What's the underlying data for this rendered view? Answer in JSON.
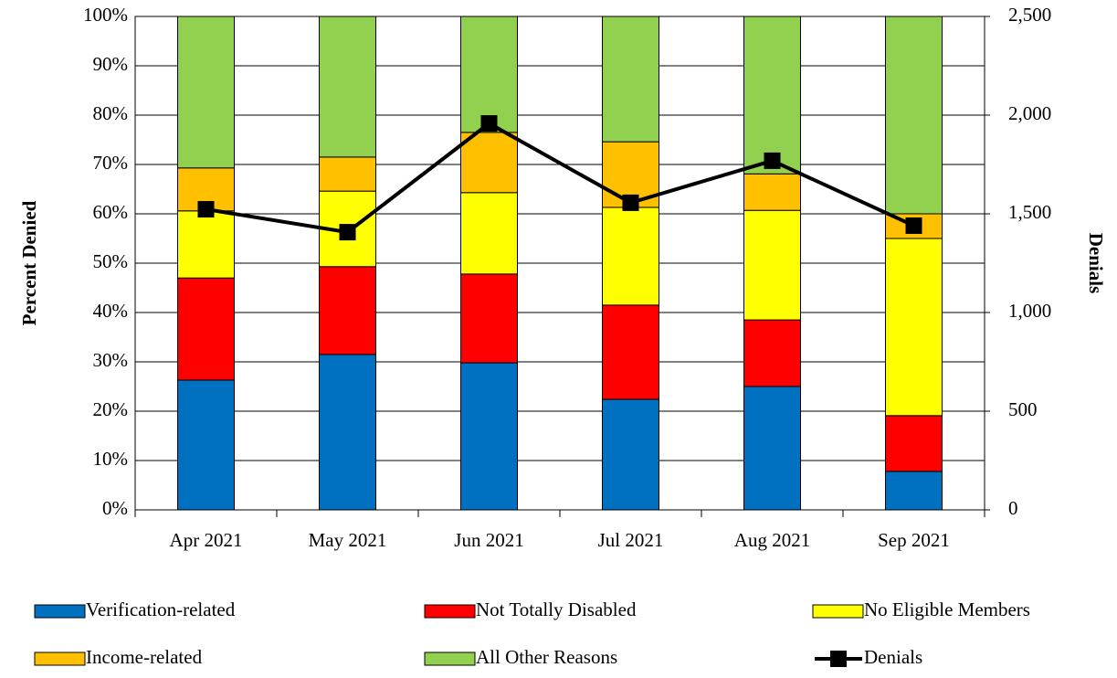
{
  "chart_data": {
    "type": "stacked-bar-line",
    "y_label": "Percent Denied",
    "y2_label": "Denials",
    "categories": [
      "Apr 2021",
      "May 2021",
      "Jun 2021",
      "Jul 2021",
      "Aug 2021",
      "Sep 2021"
    ],
    "series": [
      {
        "name": "Verification-related",
        "color": "#0070c0",
        "values": [
          26.3,
          31.5,
          29.8,
          22.4,
          25.0,
          7.8
        ]
      },
      {
        "name": "Not Totally Disabled",
        "color": "#ff0000",
        "values": [
          20.7,
          17.8,
          18.0,
          19.1,
          13.5,
          11.3
        ]
      },
      {
        "name": "No Eligible Members",
        "color": "#ffff00",
        "values": [
          13.6,
          15.3,
          16.5,
          19.8,
          22.2,
          35.9
        ]
      },
      {
        "name": "Income-related",
        "color": "#ffc000",
        "values": [
          8.7,
          6.9,
          12.2,
          13.3,
          7.4,
          5.0
        ]
      },
      {
        "name": "All Other Reasons",
        "color": "#92d050",
        "values": [
          30.7,
          28.5,
          23.5,
          25.4,
          31.9,
          40.0
        ]
      },
      {
        "name": "Denials",
        "color": "#000000",
        "type": "line",
        "axis": "y2",
        "values": [
          1523,
          1407,
          1958,
          1556,
          1769,
          1440
        ]
      }
    ],
    "ylim": [
      0,
      100
    ],
    "yticks": [
      {
        "value": 0,
        "label": "0%"
      },
      {
        "value": 10,
        "label": "10%"
      },
      {
        "value": 20,
        "label": "20%"
      },
      {
        "value": 30,
        "label": "30%"
      },
      {
        "value": 40,
        "label": "40%"
      },
      {
        "value": 50,
        "label": "50%"
      },
      {
        "value": 60,
        "label": "60%"
      },
      {
        "value": 70,
        "label": "70%"
      },
      {
        "value": 80,
        "label": "80%"
      },
      {
        "value": 90,
        "label": "90%"
      },
      {
        "value": 100,
        "label": "100%"
      }
    ],
    "y2lim": [
      0,
      2500
    ],
    "y2ticks": [
      0,
      500,
      {
        "value": 1000,
        "label": "1,000"
      },
      {
        "value": 1500,
        "label": "1,500"
      },
      {
        "value": 2000,
        "label": "2,000"
      },
      {
        "value": 2500,
        "label": "2,500"
      }
    ],
    "grid": true,
    "legend": "bottom"
  }
}
